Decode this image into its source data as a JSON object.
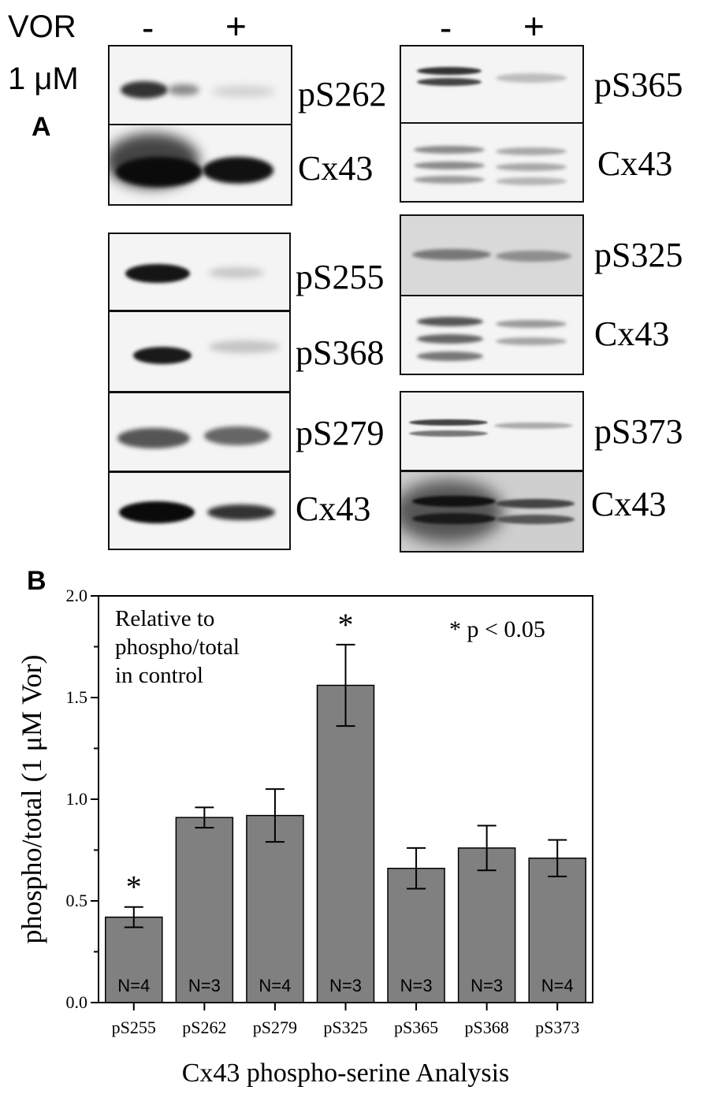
{
  "panel_a": {
    "letter": "A",
    "treatment_label": "VOR",
    "dose_label": "1 μM",
    "minus": "-",
    "plus": "+",
    "left_blots": [
      {
        "label": "pS262"
      },
      {
        "label": "Cx43"
      },
      {
        "label": "pS255"
      },
      {
        "label": "pS368"
      },
      {
        "label": "pS279"
      },
      {
        "label": "Cx43"
      }
    ],
    "right_blots": [
      {
        "label": "pS365"
      },
      {
        "label": "Cx43"
      },
      {
        "label": "pS325"
      },
      {
        "label": "Cx43"
      },
      {
        "label": "pS373"
      },
      {
        "label": "Cx43"
      }
    ]
  },
  "panel_b": {
    "letter": "B",
    "annotation": [
      "Relative to",
      "phospho/total",
      "in control"
    ],
    "significance_note": "* p < 0.05",
    "significance_marker": "*"
  },
  "chart_data": {
    "type": "bar",
    "title": "",
    "xlabel": "Cx43 phospho-serine Analysis",
    "ylabel": "phospho/total (1 μM Vor)",
    "ylim": [
      0,
      2.0
    ],
    "yticks": [
      "0.0",
      "0.5",
      "1.0",
      "1.5",
      "2.0"
    ],
    "categories": [
      "pS255",
      "pS262",
      "pS279",
      "pS325",
      "pS365",
      "pS368",
      "pS373"
    ],
    "values": [
      0.42,
      0.91,
      0.92,
      1.56,
      0.66,
      0.76,
      0.71
    ],
    "errors": [
      0.05,
      0.05,
      0.13,
      0.2,
      0.1,
      0.11,
      0.09
    ],
    "n_labels": [
      "N=4",
      "N=3",
      "N=4",
      "N=3",
      "N=3",
      "N=3",
      "N=4"
    ],
    "significant": [
      true,
      false,
      false,
      true,
      false,
      false,
      false
    ],
    "bar_color": "#808080",
    "grid": false
  }
}
